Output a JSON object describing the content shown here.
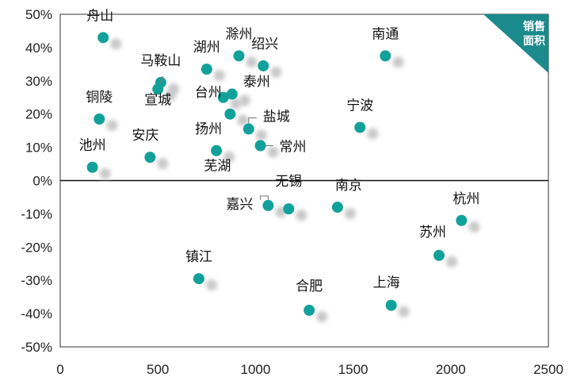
{
  "chart_data": {
    "type": "scatter",
    "title": "",
    "xlabel": "",
    "ylabel": "",
    "xlim": [
      0,
      2500
    ],
    "ylim": [
      -50,
      50
    ],
    "x_ticks": [
      0,
      500,
      1000,
      1500,
      2000,
      2500
    ],
    "y_ticks": [
      50,
      40,
      30,
      20,
      10,
      0,
      -10,
      -20,
      -30,
      -40,
      -50
    ],
    "y_tick_labels": [
      "50%",
      "40%",
      "30%",
      "20%",
      "10%",
      "0%",
      "-10%",
      "-20%",
      "-30%",
      "-40%",
      "-50%"
    ],
    "y_unit": "%",
    "grid": false,
    "badge": {
      "line1": "销售",
      "line2": "面积"
    },
    "colors": {
      "point": "#12A19A",
      "shadow": "#c8c8c8",
      "badge": "#1b8a8c",
      "axis": "#333333"
    },
    "points": [
      {
        "name": "舟山",
        "x": 220,
        "y": 43
      },
      {
        "name": "滁州",
        "x": 915,
        "y": 37.5
      },
      {
        "name": "绍兴",
        "x": 1040,
        "y": 34.5
      },
      {
        "name": "南通",
        "x": 1665,
        "y": 37.5
      },
      {
        "name": "湖州",
        "x": 750,
        "y": 33.5
      },
      {
        "name": "马鞍山",
        "x": 515,
        "y": 29.5
      },
      {
        "name": "宣城",
        "x": 500,
        "y": 27.5
      },
      {
        "name": "台州",
        "x": 835,
        "y": 25
      },
      {
        "name": "泰州",
        "x": 880,
        "y": 26
      },
      {
        "name": "铜陵",
        "x": 200,
        "y": 18.5
      },
      {
        "name": "扬州",
        "x": 800,
        "y": 9
      },
      {
        "name": "盐城",
        "x": 965,
        "y": 15.5
      },
      {
        "name": "常州",
        "x": 1025,
        "y": 10.5
      },
      {
        "name": "宁波",
        "x": 1535,
        "y": 16
      },
      {
        "name": "安庆",
        "x": 460,
        "y": 7
      },
      {
        "name": "池州",
        "x": 165,
        "y": 4
      },
      {
        "name": "芜湖",
        "x": 870,
        "y": 20
      },
      {
        "name": "嘉兴",
        "x": 1065,
        "y": -7.5
      },
      {
        "name": "无锡",
        "x": 1170,
        "y": -8.5
      },
      {
        "name": "南京",
        "x": 1420,
        "y": -8
      },
      {
        "name": "杭州",
        "x": 2055,
        "y": -12
      },
      {
        "name": "苏州",
        "x": 1940,
        "y": -22.5
      },
      {
        "name": "镇江",
        "x": 710,
        "y": -29.5
      },
      {
        "name": "合肥",
        "x": 1275,
        "y": -39
      },
      {
        "name": "上海",
        "x": 1695,
        "y": -37.5
      }
    ]
  }
}
